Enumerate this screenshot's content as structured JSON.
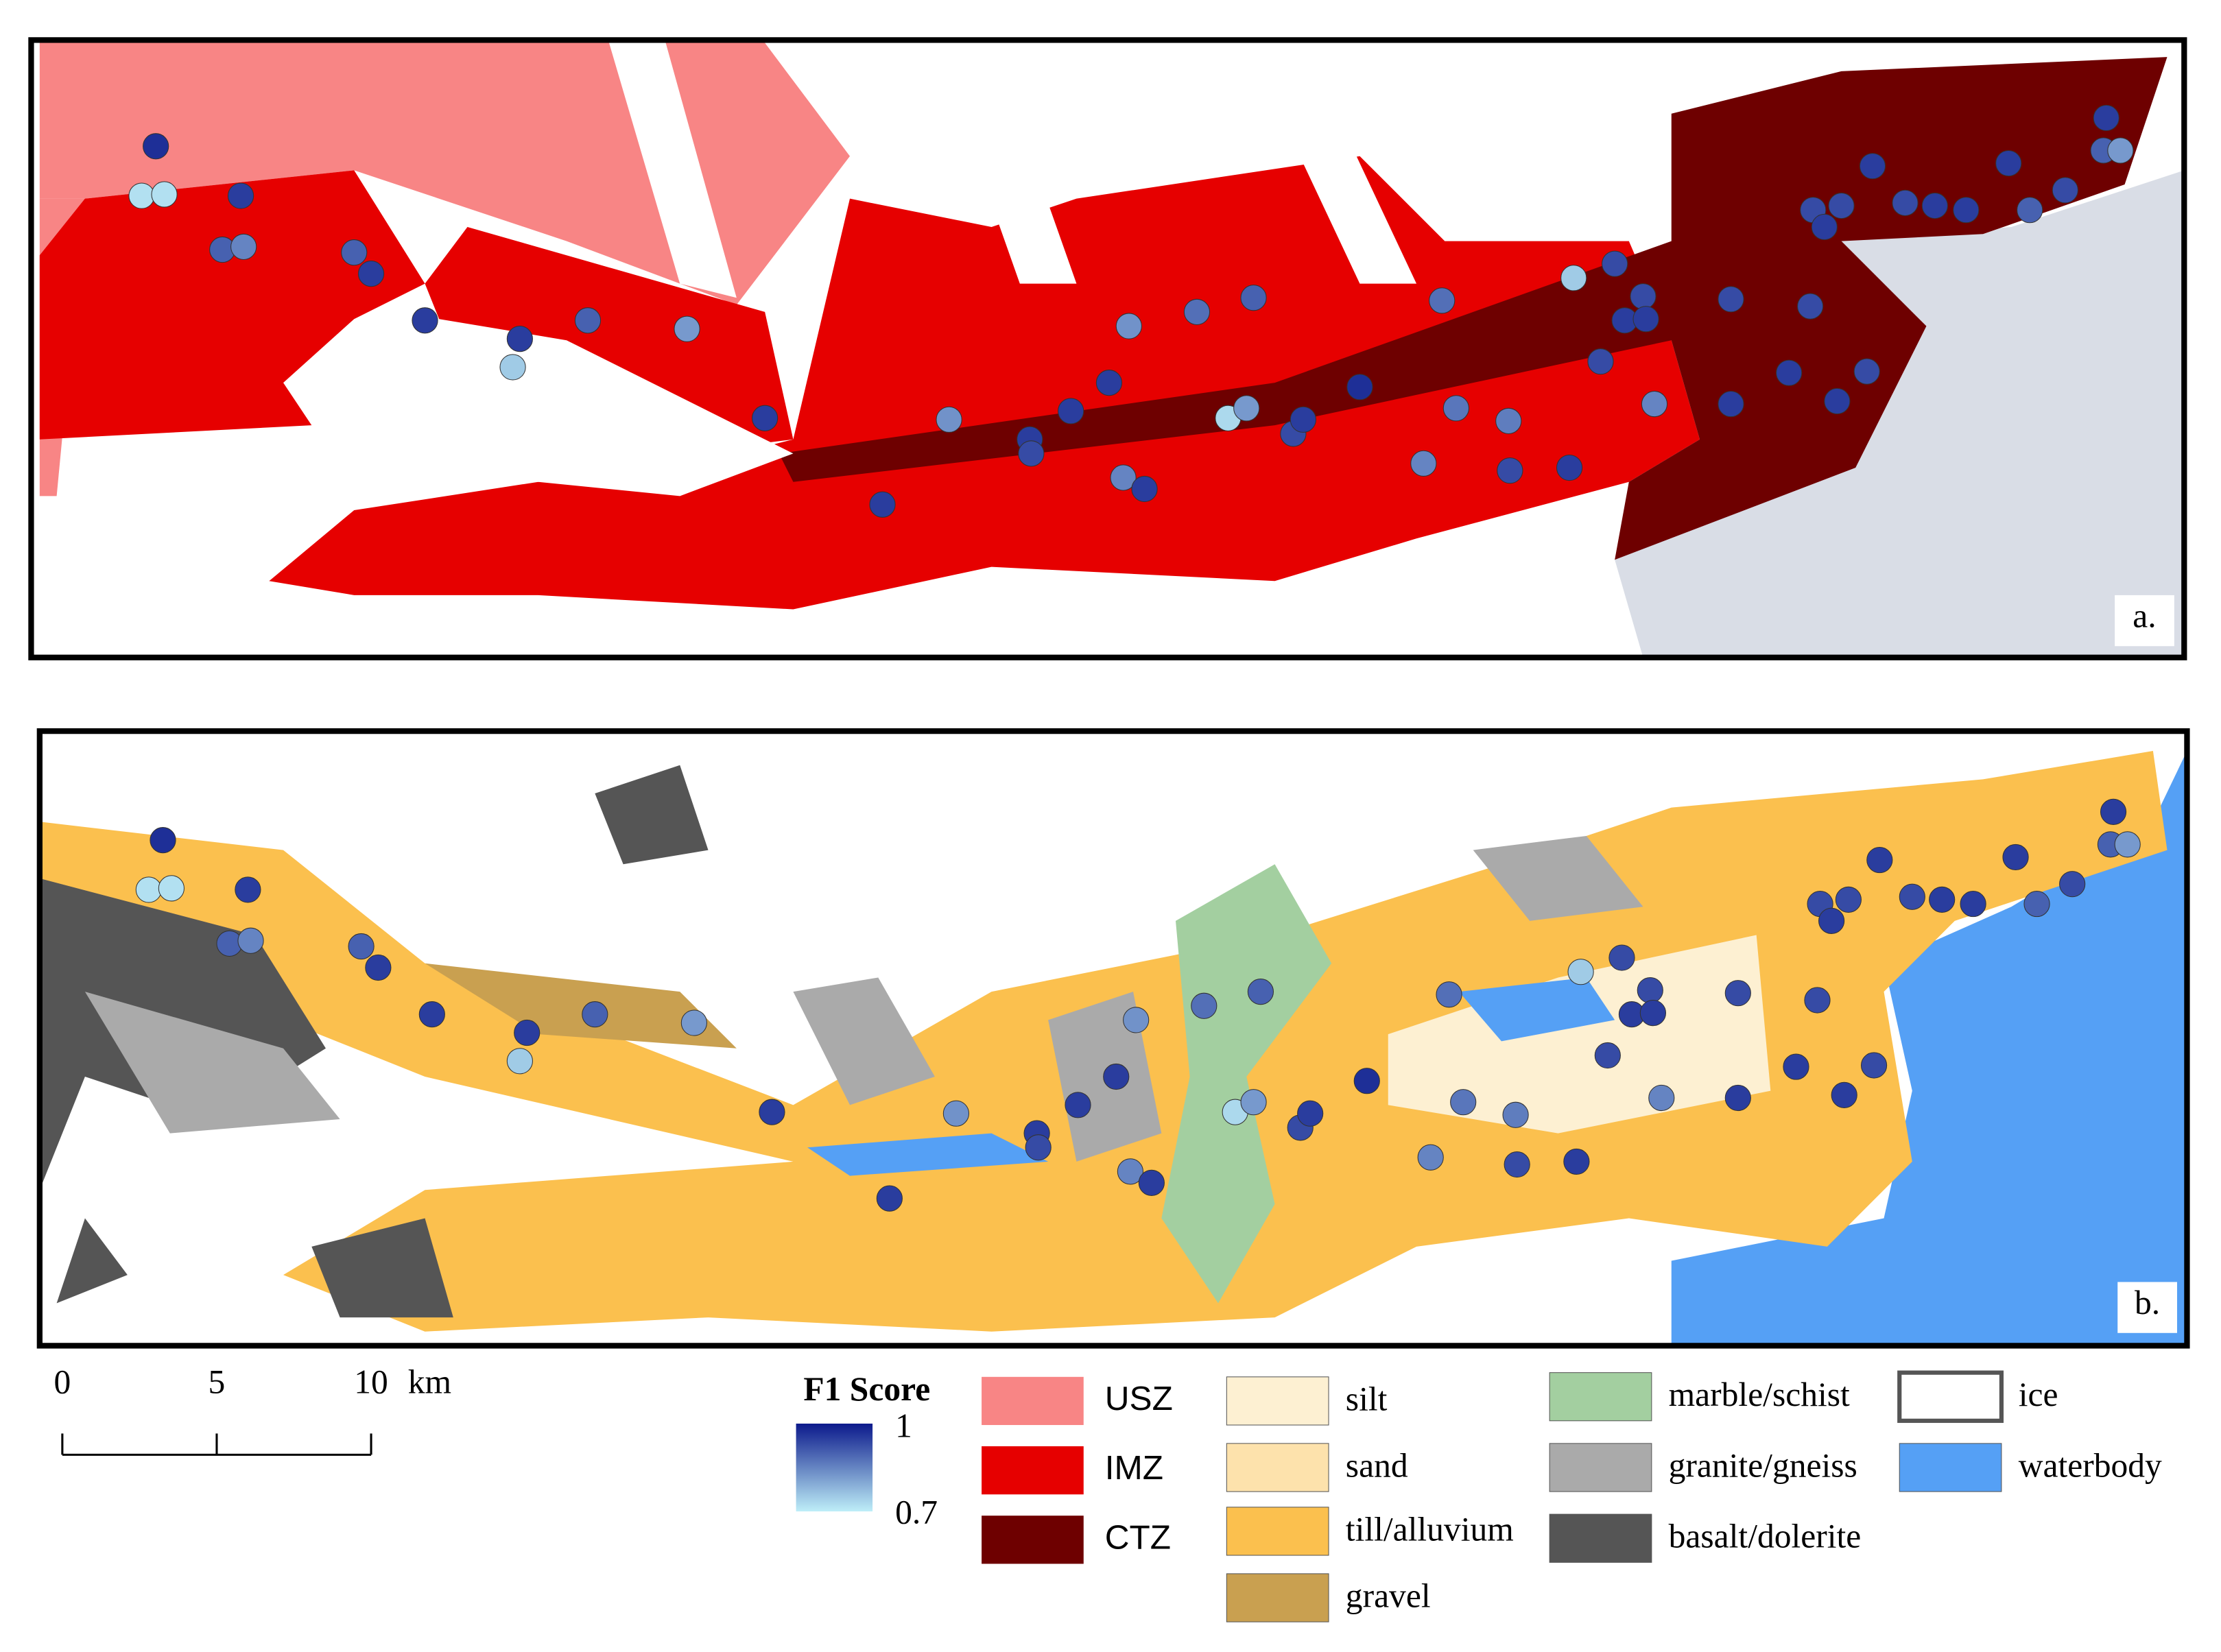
{
  "panels": {
    "a": {
      "label": "a."
    },
    "b": {
      "label": "b."
    }
  },
  "scale_bar": {
    "ticks": [
      0,
      5,
      10
    ],
    "unit": "km"
  },
  "colorbar": {
    "title": "F1 Score",
    "max": 1,
    "min": 0.7
  },
  "legend": {
    "zones": [
      {
        "name": "USZ",
        "color": "#f88585"
      },
      {
        "name": "IMZ",
        "color": "#e60000"
      },
      {
        "name": "CTZ",
        "color": "#6e0000"
      }
    ],
    "materials": [
      {
        "name": "silt",
        "color": "#fdf0d2"
      },
      {
        "name": "sand",
        "color": "#fde2ac"
      },
      {
        "name": "till/alluvium",
        "color": "#fbc04e"
      },
      {
        "name": "gravel",
        "color": "#c9a050"
      },
      {
        "name": "marble/schist",
        "color": "#a3cfa0"
      },
      {
        "name": "granite/gneiss",
        "color": "#aaaaaa"
      },
      {
        "name": "basalt/dolerite",
        "color": "#555555"
      },
      {
        "name": "ice",
        "color": "#ffffff"
      },
      {
        "name": "waterbody",
        "color": "#55a0f5"
      }
    ]
  },
  "sites": {
    "f1": [
      0.97,
      0.72,
      0.72,
      0.95,
      0.9,
      0.85,
      0.9,
      0.95,
      0.95,
      0.95,
      0.75,
      0.9,
      0.82,
      0.95,
      0.95,
      0.83,
      0.95,
      0.93,
      0.95,
      0.95,
      0.83,
      0.85,
      0.95,
      0.88,
      0.9,
      0.73,
      0.82,
      0.93,
      0.95,
      0.97,
      0.85,
      0.88,
      0.87,
      0.86,
      0.93,
      0.95,
      0.75,
      0.93,
      0.93,
      0.95,
      0.93,
      0.95,
      0.85,
      0.93,
      0.95,
      0.95,
      0.93,
      0.93,
      0.95,
      0.93,
      0.95,
      0.93,
      0.95,
      0.93,
      0.95,
      0.95,
      0.95,
      0.9,
      0.93,
      0.95,
      0.9,
      0.82
    ]
  }
}
